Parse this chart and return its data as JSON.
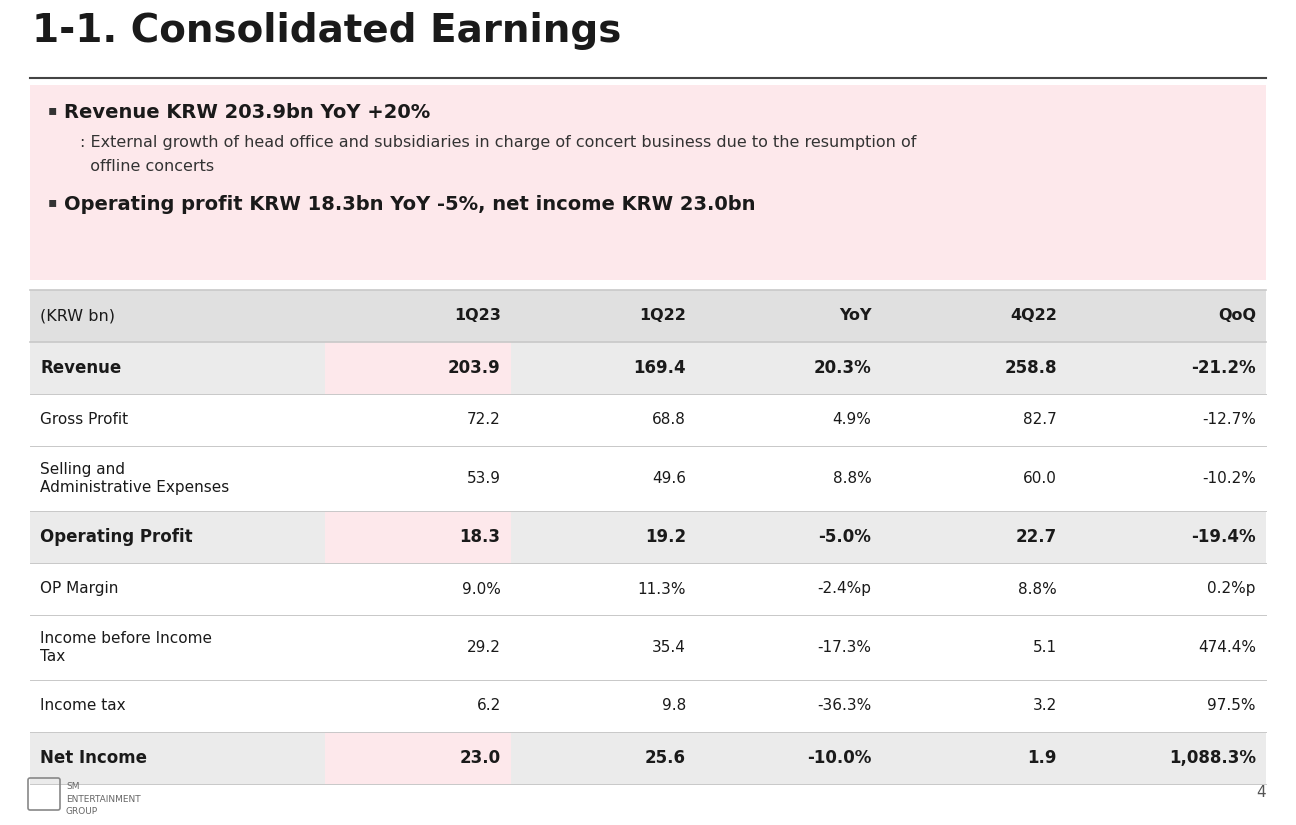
{
  "title": "1-1. Consolidated Earnings",
  "background_color": "#ffffff",
  "pink_bg": "#fde8eb",
  "bullet1_bold": "Revenue KRW 203.9bn YoY +20%",
  "bullet1_sub1": ": External growth of head office and subsidiaries in charge of concert business due to the resumption of",
  "bullet1_sub2": "  offline concerts",
  "bullet2_bold": "Operating profit KRW 18.3bn YoY -5%, net income KRW 23.0bn",
  "table_header": [
    "(KRW bn)",
    "1Q23",
    "1Q22",
    "YoY",
    "4Q22",
    "QoQ"
  ],
  "table_rows": [
    [
      "Revenue",
      "203.9",
      "169.4",
      "20.3%",
      "258.8",
      "-21.2%"
    ],
    [
      "Gross Profit",
      "72.2",
      "68.8",
      "4.9%",
      "82.7",
      "-12.7%"
    ],
    [
      "Selling and\nAdministrative Expenses",
      "53.9",
      "49.6",
      "8.8%",
      "60.0",
      "-10.2%"
    ],
    [
      "Operating Profit",
      "18.3",
      "19.2",
      "-5.0%",
      "22.7",
      "-19.4%"
    ],
    [
      "OP Margin",
      "9.0%",
      "11.3%",
      "-2.4%p",
      "8.8%",
      "0.2%p"
    ],
    [
      "Income before Income\nTax",
      "29.2",
      "35.4",
      "-17.3%",
      "5.1",
      "474.4%"
    ],
    [
      "Income tax",
      "6.2",
      "9.8",
      "-36.3%",
      "3.2",
      "97.5%"
    ],
    [
      "Net Income",
      "23.0",
      "25.6",
      "-10.0%",
      "1.9",
      "1,088.3%"
    ]
  ],
  "bold_rows": [
    0,
    3,
    7
  ],
  "pink_col1_rows": [
    0,
    3,
    7
  ],
  "col_aligns": [
    "left",
    "right",
    "right",
    "right",
    "right",
    "right"
  ],
  "header_bg": "#e0e0e0",
  "bold_row_bg": "#ebebeb",
  "normal_row_bg": "#ffffff",
  "pink_cell": "#fde8eb",
  "separator_color": "#c8c8c8",
  "logo_text": "SM\nENTERTAINMENT\nGROUP",
  "page_number": "4"
}
